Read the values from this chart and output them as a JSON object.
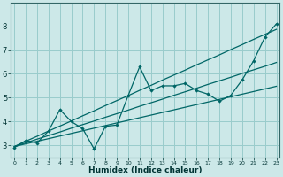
{
  "xlabel": "Humidex (Indice chaleur)",
  "background_color": "#cce8e8",
  "grid_color": "#99cccc",
  "line_color": "#006666",
  "x_data": [
    0,
    1,
    2,
    3,
    4,
    5,
    6,
    7,
    8,
    9,
    10,
    11,
    12,
    13,
    14,
    15,
    16,
    17,
    18,
    19,
    20,
    21,
    22,
    23
  ],
  "y_main": [
    2.9,
    3.2,
    3.1,
    3.6,
    4.5,
    4.0,
    3.7,
    2.85,
    3.8,
    3.85,
    5.1,
    6.3,
    5.3,
    5.5,
    5.5,
    5.6,
    5.3,
    5.15,
    4.85,
    5.1,
    5.75,
    6.55,
    7.55,
    8.1
  ],
  "reg_line1": [
    2.95,
    3.17,
    3.38,
    3.6,
    3.81,
    4.02,
    4.24,
    4.45,
    4.67,
    4.88,
    5.09,
    5.31,
    5.52,
    5.74,
    5.95,
    6.16,
    6.38,
    6.59,
    6.8,
    7.02,
    7.23,
    7.45,
    7.66,
    7.87
  ],
  "reg_line2": [
    2.95,
    3.1,
    3.26,
    3.41,
    3.56,
    3.72,
    3.87,
    4.02,
    4.18,
    4.33,
    4.48,
    4.64,
    4.79,
    4.94,
    5.1,
    5.25,
    5.4,
    5.56,
    5.71,
    5.86,
    6.02,
    6.17,
    6.32,
    6.48
  ],
  "reg_line3": [
    2.95,
    3.06,
    3.17,
    3.28,
    3.39,
    3.5,
    3.61,
    3.72,
    3.83,
    3.94,
    4.05,
    4.16,
    4.27,
    4.38,
    4.49,
    4.6,
    4.71,
    4.82,
    4.93,
    5.04,
    5.15,
    5.26,
    5.37,
    5.48
  ],
  "ylim": [
    2.5,
    9.0
  ],
  "xlim": [
    -0.3,
    23.3
  ],
  "yticks": [
    3,
    4,
    5,
    6,
    7,
    8
  ],
  "xticks": [
    0,
    1,
    2,
    3,
    4,
    5,
    6,
    7,
    8,
    9,
    10,
    11,
    12,
    13,
    14,
    15,
    16,
    17,
    18,
    19,
    20,
    21,
    22,
    23
  ]
}
